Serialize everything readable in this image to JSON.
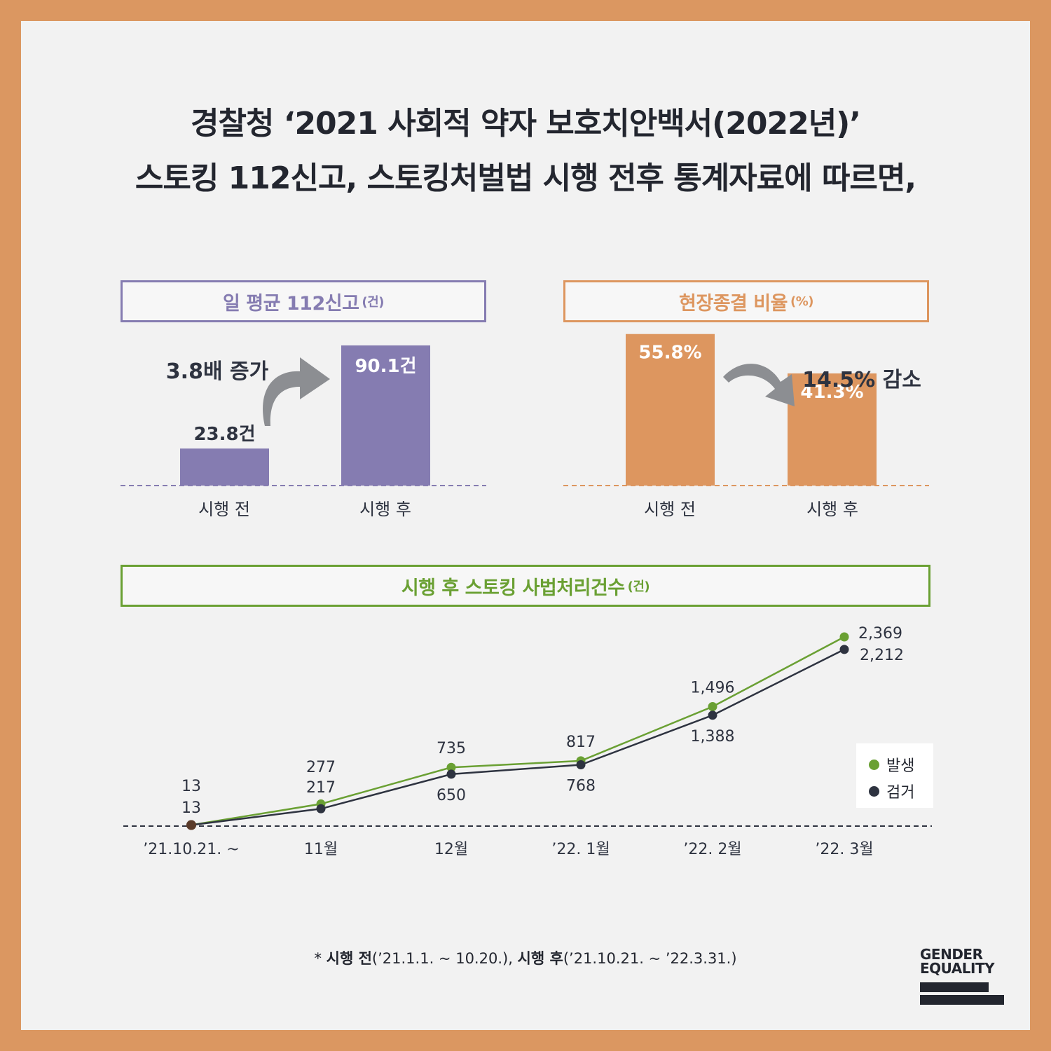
{
  "title": {
    "line1": "경찰청 ‘2021 사회적 약자 보호치안백서(2022년)’",
    "line2": "스토킹 112신고, 스토킹처벌법 시행 전후 통계자료에 따르면,"
  },
  "colors": {
    "background_frame": "#db9761",
    "panel": "#f2f2f2",
    "purple": "#857cb1",
    "orange": "#dd965f",
    "green": "#6aa033",
    "dark": "#2e3340",
    "arrow_gray": "#8c8e92"
  },
  "chart_data": [
    {
      "type": "bar",
      "title": "일 평균 112신고",
      "unit": "(건)",
      "categories": [
        "시행 전",
        "시행 후"
      ],
      "values": [
        23.8,
        90.1
      ],
      "value_labels": [
        "23.8건",
        "90.1건"
      ],
      "ylim": [
        0,
        90.1
      ],
      "annotation": "3.8배 증가"
    },
    {
      "type": "bar",
      "title": "현장종결 비율",
      "unit": "(%)",
      "categories": [
        "시행 전",
        "시행 후"
      ],
      "values": [
        55.8,
        41.3
      ],
      "value_labels": [
        "55.8%",
        "41.3%"
      ],
      "ylim": [
        0,
        64.5
      ],
      "annotation": "14.5% 감소"
    },
    {
      "type": "line",
      "title": "시행 후 스토킹 사법처리건수",
      "unit": "(건)",
      "categories": [
        "’21.10.21. ~",
        "11월",
        "12월",
        "’22. 1월",
        "’22. 2월",
        "’22. 3월"
      ],
      "series": [
        {
          "name": "발생",
          "values": [
            13,
            277,
            735,
            817,
            1496,
            2369
          ],
          "labels": [
            "13",
            "277",
            "735",
            "817",
            "1,496",
            "2,369"
          ]
        },
        {
          "name": "검거",
          "values": [
            13,
            217,
            650,
            768,
            1388,
            2212
          ],
          "labels": [
            "13",
            "217",
            "650",
            "768",
            "1,388",
            "2,212"
          ]
        }
      ],
      "ylim": [
        0,
        2369
      ],
      "legend": "right"
    }
  ],
  "footnote": {
    "star": "*",
    "before_label": "시행 전",
    "before_range": "(’21.1.1. ~ 10.20.), ",
    "after_label": "시행 후",
    "after_range": "(’21.10.21. ~ ’22.3.31.)"
  },
  "logo": {
    "line1": "GENDER",
    "line2": "EQUALITY"
  }
}
